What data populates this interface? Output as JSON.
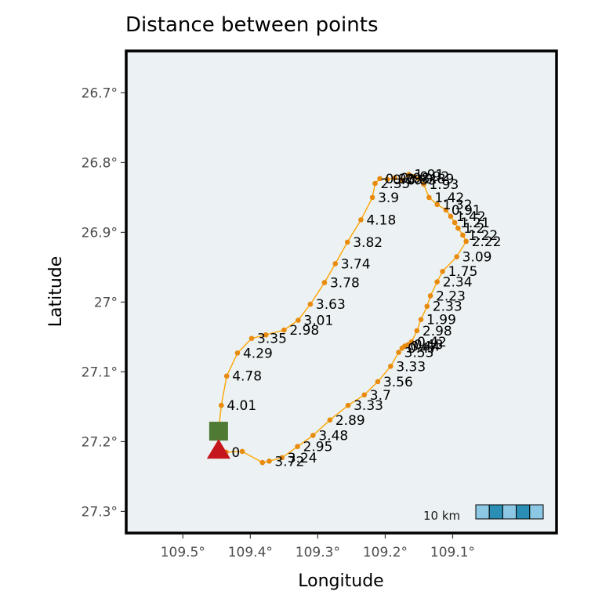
{
  "chart_data": {
    "type": "scatter",
    "title": "Distance between points",
    "xlabel": "Longitude",
    "ylabel": "Latitude",
    "xlim": [
      109.584,
      108.946
    ],
    "ylim": [
      26.64,
      27.331
    ],
    "x_ticks": [
      109.5,
      109.4,
      109.3,
      109.2,
      109.1
    ],
    "x_tick_labels": [
      "109.5°",
      "109.4°",
      "109.3°",
      "109.2°",
      "109.1°"
    ],
    "y_ticks": [
      26.7,
      26.8,
      26.9,
      27.0,
      27.1,
      27.2,
      27.3
    ],
    "y_tick_labels": [
      "26.7°",
      "26.8°",
      "26.9°",
      "27°",
      "27.1°",
      "27.2°",
      "27.3°"
    ],
    "grid": false,
    "colors": {
      "panel": "#ecf1f3",
      "route": "#ffa500",
      "point": "#e88a0c",
      "start_marker": "#4f7a34",
      "end_marker": "#c4161c",
      "scalebar_light": "#8cc8e3",
      "scalebar_dark": "#2b8fb5"
    },
    "start": {
      "lon": 109.447,
      "lat": 27.185,
      "shape": "square"
    },
    "end": {
      "lon": 109.447,
      "lat": 27.212,
      "shape": "triangle"
    },
    "scalebar": {
      "label": "10 km"
    },
    "points": [
      {
        "lon": 109.447,
        "lat": 27.185,
        "label": ""
      },
      {
        "lon": 109.443,
        "lat": 27.148,
        "label": "4.01"
      },
      {
        "lon": 109.435,
        "lat": 27.106,
        "label": "4.78"
      },
      {
        "lon": 109.419,
        "lat": 27.073,
        "label": "4.29"
      },
      {
        "lon": 109.398,
        "lat": 27.052,
        "label": "3.35"
      },
      {
        "lon": 109.377,
        "lat": 27.047,
        "label": ""
      },
      {
        "lon": 109.35,
        "lat": 27.04,
        "label": "2.98"
      },
      {
        "lon": 109.329,
        "lat": 27.026,
        "label": "3.01"
      },
      {
        "lon": 109.311,
        "lat": 27.003,
        "label": "3.63"
      },
      {
        "lon": 109.29,
        "lat": 26.972,
        "label": "3.78"
      },
      {
        "lon": 109.274,
        "lat": 26.945,
        "label": "3.74"
      },
      {
        "lon": 109.256,
        "lat": 26.914,
        "label": "3.82"
      },
      {
        "lon": 109.236,
        "lat": 26.882,
        "label": "4.18"
      },
      {
        "lon": 109.219,
        "lat": 26.85,
        "label": "3.9"
      },
      {
        "lon": 109.215,
        "lat": 26.83,
        "label": "2.35"
      },
      {
        "lon": 109.208,
        "lat": 26.823,
        "label": "0.93"
      },
      {
        "lon": 109.197,
        "lat": 26.824,
        "label": "0.78"
      },
      {
        "lon": 109.186,
        "lat": 26.822,
        "label": "0.98"
      },
      {
        "lon": 109.176,
        "lat": 26.825,
        "label": "0.83"
      },
      {
        "lon": 109.165,
        "lat": 26.817,
        "label": "1.91"
      },
      {
        "lon": 109.157,
        "lat": 26.82,
        "label": "0.92"
      },
      {
        "lon": 109.15,
        "lat": 26.823,
        "label": "0.89"
      },
      {
        "lon": 109.143,
        "lat": 26.831,
        "label": "1.93"
      },
      {
        "lon": 109.135,
        "lat": 26.85,
        "label": "1.42"
      },
      {
        "lon": 109.123,
        "lat": 26.86,
        "label": "1.32"
      },
      {
        "lon": 109.11,
        "lat": 26.868,
        "label": "0.91"
      },
      {
        "lon": 109.103,
        "lat": 26.877,
        "label": "1.42"
      },
      {
        "lon": 109.097,
        "lat": 26.886,
        "label": "1.21"
      },
      {
        "lon": 109.092,
        "lat": 26.894,
        "label": "1.2"
      },
      {
        "lon": 109.085,
        "lat": 26.904,
        "label": "1.22"
      },
      {
        "lon": 109.08,
        "lat": 26.913,
        "label": "2.22"
      },
      {
        "lon": 109.094,
        "lat": 26.935,
        "label": "3.09"
      },
      {
        "lon": 109.115,
        "lat": 26.956,
        "label": "1.75"
      },
      {
        "lon": 109.123,
        "lat": 26.971,
        "label": "2.34"
      },
      {
        "lon": 109.133,
        "lat": 26.991,
        "label": "2.23"
      },
      {
        "lon": 109.138,
        "lat": 27.006,
        "label": "2.33"
      },
      {
        "lon": 109.147,
        "lat": 27.025,
        "label": "1.99"
      },
      {
        "lon": 109.153,
        "lat": 27.041,
        "label": "2.98"
      },
      {
        "lon": 109.161,
        "lat": 27.057,
        "label": "0.42"
      },
      {
        "lon": 109.166,
        "lat": 27.061,
        "label": "0.43"
      },
      {
        "lon": 109.171,
        "lat": 27.063,
        "label": "0.44"
      },
      {
        "lon": 109.175,
        "lat": 27.066,
        "label": "0.47"
      },
      {
        "lon": 109.18,
        "lat": 27.072,
        "label": "3.53"
      },
      {
        "lon": 109.192,
        "lat": 27.092,
        "label": "3.33"
      },
      {
        "lon": 109.211,
        "lat": 27.114,
        "label": "3.56"
      },
      {
        "lon": 109.231,
        "lat": 27.133,
        "label": "3.7"
      },
      {
        "lon": 109.255,
        "lat": 27.148,
        "label": "3.33"
      },
      {
        "lon": 109.282,
        "lat": 27.169,
        "label": "2.89"
      },
      {
        "lon": 109.307,
        "lat": 27.191,
        "label": "3.48"
      },
      {
        "lon": 109.33,
        "lat": 27.207,
        "label": "2.95"
      },
      {
        "lon": 109.353,
        "lat": 27.223,
        "label": "3.24"
      },
      {
        "lon": 109.372,
        "lat": 27.228,
        "label": "3.72"
      },
      {
        "lon": 109.382,
        "lat": 27.23,
        "label": ""
      },
      {
        "lon": 109.412,
        "lat": 27.214,
        "label": ""
      },
      {
        "lon": 109.436,
        "lat": 27.215,
        "label": "0"
      }
    ]
  }
}
